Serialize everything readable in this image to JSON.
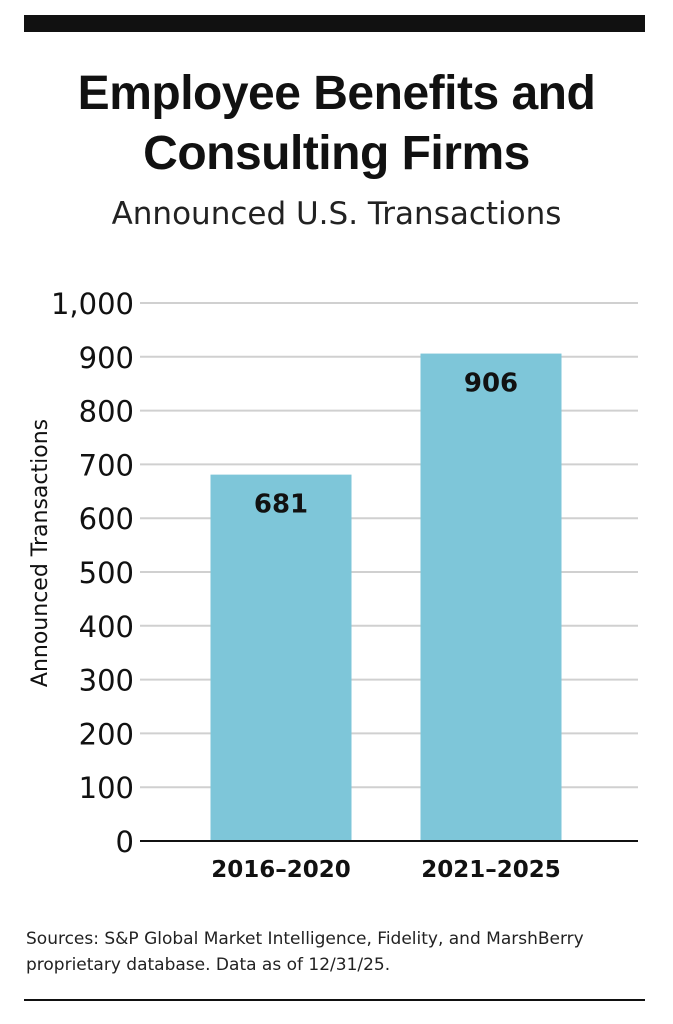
{
  "title": "Employee Benefits and Consulting Firms",
  "subtitle": "Announced U.S. Transactions",
  "source": "Sources: S&P Global Market Intelligence, Fidelity, and MarshBerry proprietary database. Data as of 12/31/25.",
  "colors": {
    "bar": "#7ec6d9",
    "grid": "#d0d0d0",
    "axis": "#111111",
    "rule": "#111111"
  },
  "chart_data": {
    "type": "bar",
    "title": "Employee Benefits and Consulting Firms",
    "subtitle": "Announced U.S. Transactions",
    "xlabel": "",
    "ylabel": "Announced Transactions",
    "categories": [
      "2016–2020",
      "2021–2025"
    ],
    "values": [
      681,
      906
    ],
    "data_labels": [
      "681",
      "906"
    ],
    "ylim": [
      0,
      1000
    ],
    "yticks": [
      0,
      100,
      200,
      300,
      400,
      500,
      600,
      700,
      800,
      900,
      1000
    ],
    "ytick_labels": [
      "0",
      "100",
      "200",
      "300",
      "400",
      "500",
      "600",
      "700",
      "800",
      "900",
      "1,000"
    ],
    "grid": true,
    "legend": "none"
  }
}
